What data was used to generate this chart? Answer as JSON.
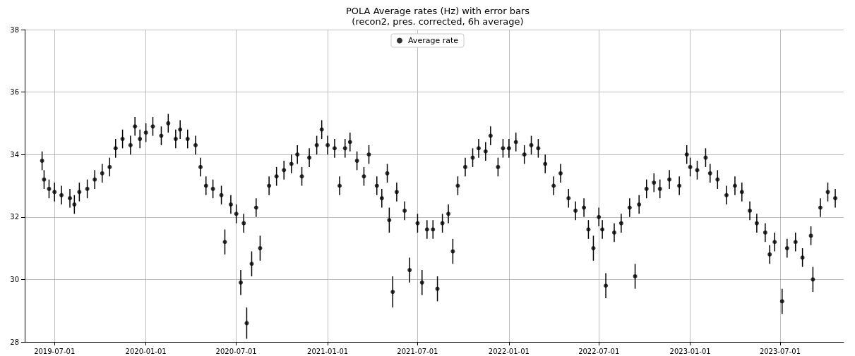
{
  "chart_data": {
    "type": "scatter",
    "title": "POLA Average rates (Hz) with error bars",
    "subtitle": "(recon2, pres. corrected, 6h average)",
    "xlim": [
      "2019-05-02",
      "2023-11-06"
    ],
    "xticks": [
      "2019-07-01",
      "2020-01-01",
      "2020-07-01",
      "2021-01-01",
      "2021-07-01",
      "2022-01-01",
      "2022-07-01",
      "2023-01-01",
      "2023-07-01"
    ],
    "ylim": [
      28,
      38
    ],
    "yticks": [
      28,
      30,
      32,
      34,
      36,
      38
    ],
    "grid": true,
    "legend": "top",
    "marker": "circle",
    "series": [
      {
        "name": "Average rate",
        "color": "#000000",
        "x": [
          "2019-06-06",
          "2019-06-10",
          "2019-06-20",
          "2019-07-01",
          "2019-07-15",
          "2019-08-01",
          "2019-08-10",
          "2019-08-20",
          "2019-09-05",
          "2019-09-20",
          "2019-10-05",
          "2019-10-20",
          "2019-11-01",
          "2019-11-15",
          "2019-12-01",
          "2019-12-10",
          "2019-12-20",
          "2020-01-01",
          "2020-01-15",
          "2020-02-01",
          "2020-02-15",
          "2020-03-01",
          "2020-03-10",
          "2020-03-25",
          "2020-04-10",
          "2020-04-20",
          "2020-05-01",
          "2020-05-15",
          "2020-06-01",
          "2020-06-08",
          "2020-06-20",
          "2020-07-01",
          "2020-07-10",
          "2020-07-16",
          "2020-07-22",
          "2020-08-01",
          "2020-08-10",
          "2020-08-18",
          "2020-09-05",
          "2020-09-20",
          "2020-10-05",
          "2020-10-20",
          "2020-11-01",
          "2020-11-10",
          "2020-11-25",
          "2020-12-10",
          "2020-12-20",
          "2021-01-01",
          "2021-01-15",
          "2021-01-25",
          "2021-02-05",
          "2021-02-15",
          "2021-03-01",
          "2021-03-15",
          "2021-03-25",
          "2021-04-10",
          "2021-04-20",
          "2021-05-01",
          "2021-05-05",
          "2021-05-12",
          "2021-05-20",
          "2021-06-05",
          "2021-06-15",
          "2021-07-01",
          "2021-07-10",
          "2021-07-20",
          "2021-08-01",
          "2021-08-10",
          "2021-08-20",
          "2021-09-01",
          "2021-09-10",
          "2021-09-20",
          "2021-10-05",
          "2021-10-20",
          "2021-11-01",
          "2021-11-15",
          "2021-11-25",
          "2021-12-10",
          "2021-12-20",
          "2022-01-01",
          "2022-01-15",
          "2022-02-01",
          "2022-02-15",
          "2022-03-01",
          "2022-03-15",
          "2022-04-01",
          "2022-04-15",
          "2022-05-01",
          "2022-05-15",
          "2022-06-01",
          "2022-06-10",
          "2022-06-20",
          "2022-07-01",
          "2022-07-08",
          "2022-07-15",
          "2022-08-01",
          "2022-08-15",
          "2022-09-01",
          "2022-09-12",
          "2022-09-20",
          "2022-10-05",
          "2022-10-20",
          "2022-11-01",
          "2022-11-20",
          "2022-12-10",
          "2022-12-25",
          "2023-01-01",
          "2023-01-15",
          "2023-02-01",
          "2023-02-10",
          "2023-02-25",
          "2023-03-15",
          "2023-04-01",
          "2023-04-15",
          "2023-05-01",
          "2023-05-15",
          "2023-06-01",
          "2023-06-10",
          "2023-06-20",
          "2023-07-05",
          "2023-07-15",
          "2023-08-01",
          "2023-08-15",
          "2023-09-01",
          "2023-09-05",
          "2023-09-20",
          "2023-10-05",
          "2023-10-20"
        ],
        "values": [
          33.8,
          33.2,
          32.9,
          32.8,
          32.7,
          32.6,
          32.4,
          32.8,
          32.9,
          33.2,
          33.4,
          33.6,
          34.2,
          34.5,
          34.3,
          34.9,
          34.5,
          34.7,
          34.9,
          34.6,
          35.0,
          34.5,
          34.8,
          34.5,
          34.3,
          33.6,
          33.0,
          32.9,
          32.7,
          31.2,
          32.4,
          32.1,
          29.9,
          31.8,
          28.6,
          30.5,
          32.3,
          31.0,
          33.0,
          33.3,
          33.5,
          33.7,
          34.0,
          33.3,
          33.9,
          34.3,
          34.8,
          34.3,
          34.2,
          33.0,
          34.2,
          34.4,
          33.8,
          33.3,
          34.0,
          33.0,
          32.6,
          33.4,
          31.9,
          29.6,
          32.8,
          32.2,
          30.3,
          31.8,
          29.9,
          31.6,
          31.6,
          29.7,
          31.8,
          32.1,
          30.9,
          33.0,
          33.6,
          33.9,
          34.2,
          34.1,
          34.6,
          33.6,
          34.2,
          34.2,
          34.4,
          34.0,
          34.3,
          34.2,
          33.7,
          33.0,
          33.4,
          32.6,
          32.2,
          32.3,
          31.6,
          31.0,
          32.0,
          31.6,
          29.8,
          31.5,
          31.8,
          32.3,
          30.1,
          32.4,
          32.9,
          33.1,
          32.9,
          33.2,
          33.0,
          34.0,
          33.6,
          33.5,
          33.9,
          33.4,
          33.2,
          32.7,
          33.0,
          32.8,
          32.2,
          31.8,
          31.5,
          30.8,
          31.2,
          29.3,
          31.0,
          31.2,
          30.7,
          31.4,
          30.0,
          32.3,
          32.8,
          32.6
        ],
        "errors": [
          0.3,
          0.3,
          0.3,
          0.3,
          0.3,
          0.3,
          0.3,
          0.3,
          0.3,
          0.3,
          0.3,
          0.3,
          0.3,
          0.3,
          0.3,
          0.3,
          0.3,
          0.3,
          0.3,
          0.3,
          0.3,
          0.3,
          0.3,
          0.3,
          0.3,
          0.3,
          0.3,
          0.3,
          0.3,
          0.4,
          0.3,
          0.3,
          0.4,
          0.3,
          0.5,
          0.4,
          0.3,
          0.4,
          0.3,
          0.3,
          0.3,
          0.3,
          0.3,
          0.3,
          0.3,
          0.3,
          0.3,
          0.3,
          0.3,
          0.3,
          0.3,
          0.3,
          0.3,
          0.3,
          0.3,
          0.3,
          0.3,
          0.3,
          0.4,
          0.5,
          0.3,
          0.3,
          0.4,
          0.3,
          0.4,
          0.3,
          0.3,
          0.4,
          0.3,
          0.3,
          0.4,
          0.3,
          0.3,
          0.3,
          0.3,
          0.3,
          0.3,
          0.3,
          0.3,
          0.3,
          0.3,
          0.3,
          0.3,
          0.3,
          0.3,
          0.3,
          0.3,
          0.3,
          0.3,
          0.3,
          0.3,
          0.4,
          0.3,
          0.3,
          0.4,
          0.3,
          0.3,
          0.3,
          0.4,
          0.3,
          0.3,
          0.3,
          0.3,
          0.3,
          0.3,
          0.3,
          0.3,
          0.3,
          0.3,
          0.3,
          0.3,
          0.3,
          0.3,
          0.3,
          0.3,
          0.3,
          0.3,
          0.3,
          0.3,
          0.4,
          0.3,
          0.3,
          0.3,
          0.3,
          0.4,
          0.3,
          0.3,
          0.3
        ]
      }
    ]
  }
}
